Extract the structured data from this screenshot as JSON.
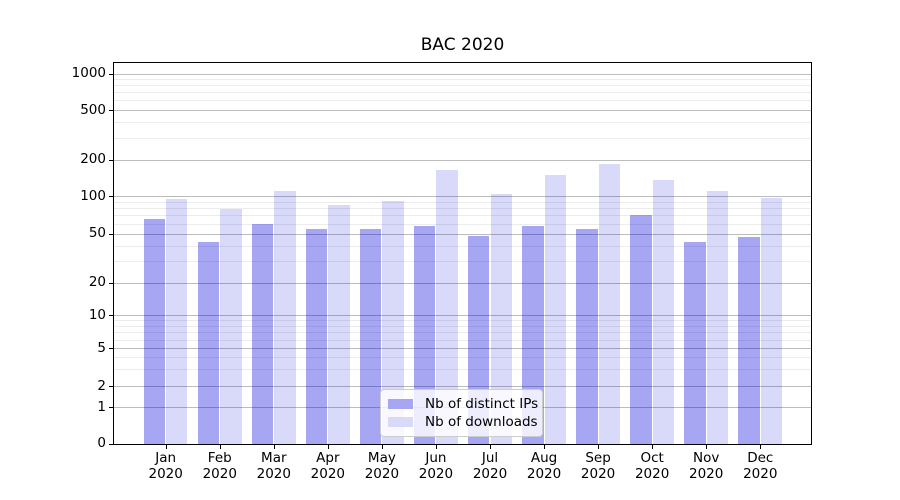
{
  "chart_data": {
    "type": "bar",
    "title": "BAC 2020",
    "categories": [
      "Jan",
      "Feb",
      "Mar",
      "Apr",
      "May",
      "Jun",
      "Jul",
      "Aug",
      "Sep",
      "Oct",
      "Nov",
      "Dec"
    ],
    "x_tick_year": "2020",
    "series": [
      {
        "name": "Nb of distinct IPs",
        "base_color_rgb": [
          0,
          0,
          220
        ],
        "alpha": 0.35,
        "legend_hex": "#a6a6f3",
        "values": [
          66,
          43,
          60,
          54,
          54,
          58,
          48,
          57,
          54,
          70,
          43,
          47
        ]
      },
      {
        "name": "Nb of downloads",
        "base_color_rgb": [
          0,
          0,
          220
        ],
        "alpha": 0.15,
        "legend_hex": "#d9d9fa",
        "values": [
          94,
          79,
          110,
          84,
          91,
          165,
          104,
          148,
          183,
          136,
          109,
          97
        ]
      }
    ],
    "yscale": "symlog",
    "ylim": [
      0,
      1000
    ],
    "yticks": [
      0,
      1,
      2,
      5,
      10,
      20,
      50,
      100,
      200,
      500,
      1000
    ],
    "minor_yticks": [
      3,
      4,
      6,
      7,
      8,
      9,
      30,
      40,
      60,
      70,
      80,
      90,
      300,
      400,
      600,
      700,
      800,
      900
    ],
    "grid": true,
    "legend_position": "lower center",
    "colors": {
      "grid_major": "#bcbcbc",
      "grid_minor": "#ececec",
      "spine": "#000000",
      "text": "#000000",
      "background": "#ffffff"
    }
  }
}
